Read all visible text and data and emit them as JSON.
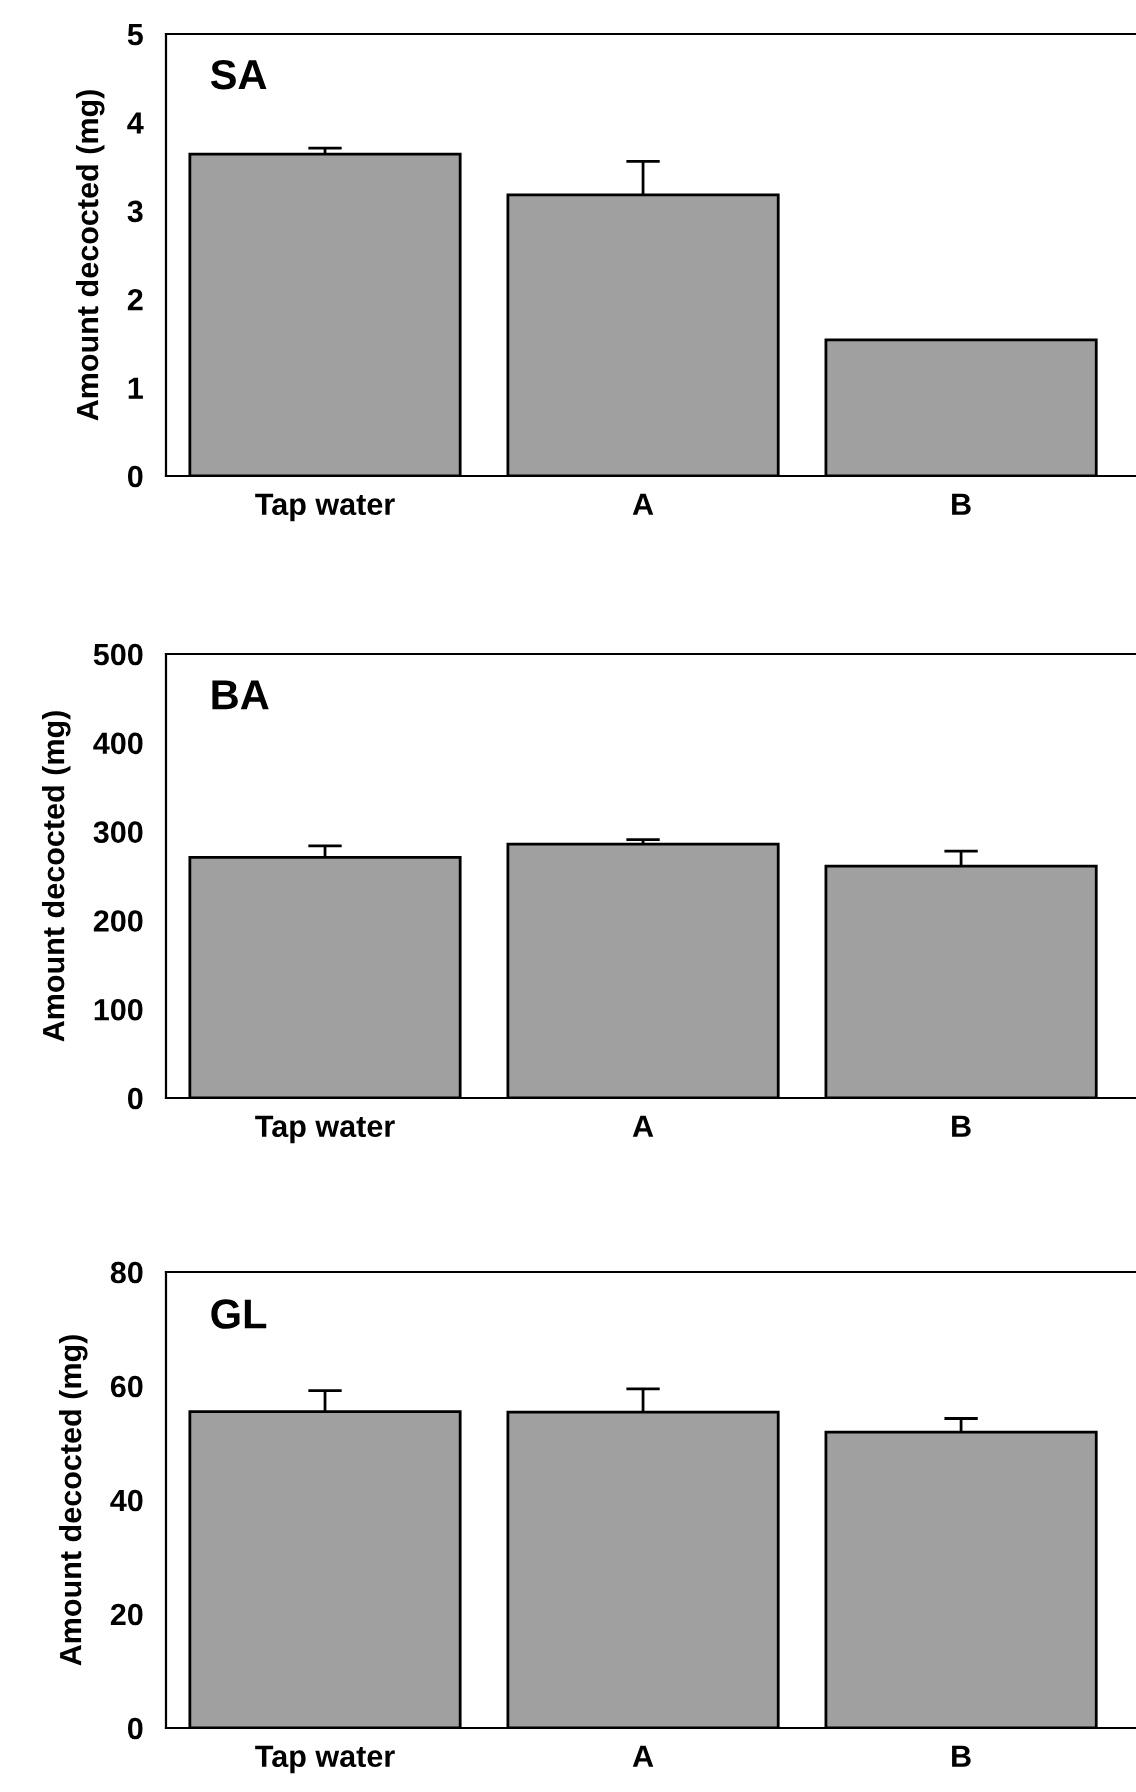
{
  "chart_data": [
    {
      "type": "bar",
      "title": "SA",
      "ylabel": "Amount decocted (mg)",
      "categories": [
        "Tap water",
        "A",
        "B"
      ],
      "values": [
        3.64,
        3.18,
        1.54
      ],
      "errors": [
        0.07,
        0.38,
        null
      ],
      "color": "#a0a0a0",
      "ylim": [
        0,
        5
      ],
      "yticks": [
        0,
        1,
        2,
        3,
        4,
        5
      ],
      "grid": false
    },
    {
      "type": "bar",
      "title": "BA",
      "ylabel": "Amount decocted (mg)",
      "categories": [
        "Tap water",
        "A",
        "B"
      ],
      "values": [
        271,
        286,
        261
      ],
      "errors": [
        13,
        5,
        17
      ],
      "color": "#a0a0a0",
      "ylim": [
        0,
        500
      ],
      "yticks": [
        0,
        100,
        200,
        300,
        400,
        500
      ],
      "grid": false
    },
    {
      "type": "bar",
      "title": "GL",
      "ylabel": "Amount decocted (mg)",
      "categories": [
        "Tap water",
        "A",
        "B"
      ],
      "values": [
        55.5,
        55.4,
        51.9
      ],
      "errors": [
        3.7,
        4.1,
        2.4
      ],
      "color": "#a0a0a0",
      "ylim": [
        0,
        80
      ],
      "yticks": [
        0,
        20,
        40,
        60,
        80
      ],
      "grid": false
    }
  ]
}
